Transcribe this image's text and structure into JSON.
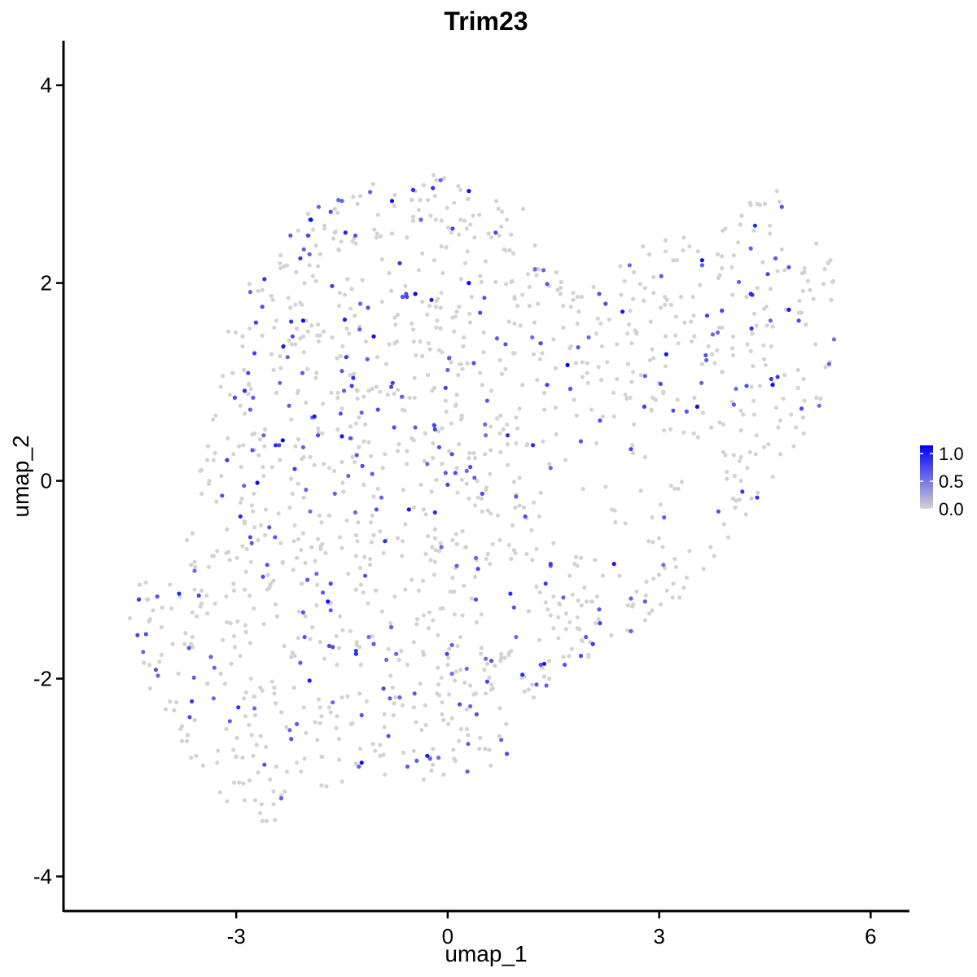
{
  "chart_data": {
    "type": "scatter",
    "title": "Trim23",
    "xlabel": "umap_1",
    "ylabel": "umap_2",
    "xlim": [
      -5.45,
      6.55
    ],
    "ylim": [
      -4.35,
      4.45
    ],
    "x_ticks": [
      -3,
      0,
      3,
      6
    ],
    "y_ticks": [
      -4,
      -2,
      0,
      2,
      4
    ],
    "x_tick_labels": [
      "-3",
      "0",
      "3",
      "6"
    ],
    "y_tick_labels": [
      "-4",
      "-2",
      "0",
      "2",
      "4"
    ],
    "grid": false,
    "legend": {
      "placement": "right",
      "type": "colorbar",
      "title": "",
      "ticks": [
        0.0,
        0.5,
        1.0
      ],
      "tick_labels": [
        "0.0",
        "0.5",
        "1.0"
      ],
      "range": [
        0.0,
        1.15
      ]
    },
    "colors": {
      "low": "#d3d3d3",
      "high": "#0000ff",
      "axis": "#000000"
    },
    "point_count": 1500,
    "points": []
  }
}
